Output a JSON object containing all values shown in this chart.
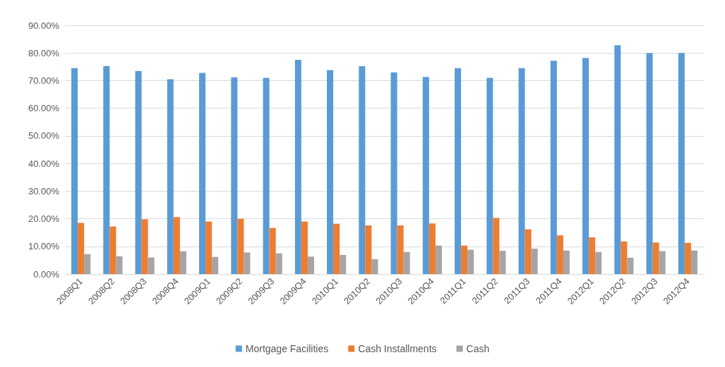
{
  "chart_data": {
    "type": "bar",
    "categories": [
      "2008Q1",
      "2008Q2",
      "2008Q3",
      "2008Q4",
      "2009Q1",
      "2009Q2",
      "2009Q3",
      "2009Q4",
      "2010Q1",
      "2010Q2",
      "2010Q3",
      "2010Q4",
      "2011Q1",
      "2011Q2",
      "2011Q3",
      "2011Q4",
      "2012Q1",
      "2012Q2",
      "2012Q3",
      "2012Q4"
    ],
    "series": [
      {
        "name": "Mortgage Facilities",
        "color": "#5b9bd5",
        "values": [
          74.5,
          75.3,
          73.5,
          70.5,
          72.8,
          71.2,
          71,
          77.5,
          73.8,
          75.2,
          73,
          71.3,
          74.5,
          71,
          74.5,
          77.2,
          78.2,
          82.8,
          80,
          80
        ]
      },
      {
        "name": "Cash Installments",
        "color": "#ed7d31",
        "values": [
          18.5,
          17.2,
          19.8,
          20.6,
          19,
          20,
          16.7,
          19,
          18.2,
          17.6,
          17.6,
          18.3,
          10.3,
          20.3,
          16.2,
          14,
          13.3,
          11.8,
          11.4,
          11.3
        ]
      },
      {
        "name": "Cash",
        "color": "#a5a5a5",
        "values": [
          7.2,
          6.4,
          6,
          8.2,
          6.2,
          7.8,
          7.5,
          6.3,
          6.9,
          5.4,
          8,
          10.3,
          8.8,
          8.4,
          9.2,
          8.5,
          8,
          5.9,
          8.3,
          8.5
        ]
      }
    ],
    "ylim": [
      0,
      90
    ],
    "yticks": [
      {
        "value": 0,
        "label": "0.00%"
      },
      {
        "value": 10,
        "label": "10.00%"
      },
      {
        "value": 20,
        "label": "20.00%"
      },
      {
        "value": 30,
        "label": "30.00%"
      },
      {
        "value": 40,
        "label": "40.00%"
      },
      {
        "value": 50,
        "label": "50.00%"
      },
      {
        "value": 60,
        "label": "60.00%"
      },
      {
        "value": 70,
        "label": "70.00%"
      },
      {
        "value": 80,
        "label": "80.00%"
      },
      {
        "value": 90,
        "label": "90.00%"
      }
    ],
    "grid": "y",
    "legend": "bottom"
  }
}
